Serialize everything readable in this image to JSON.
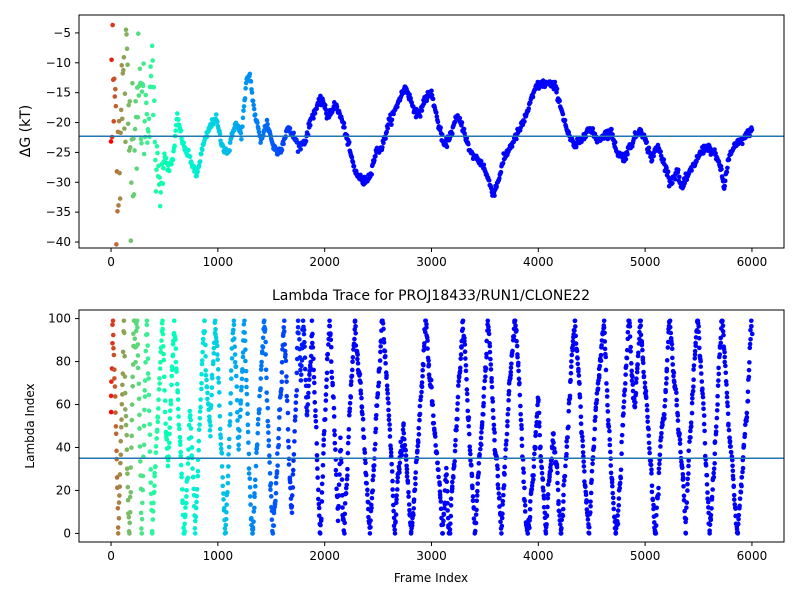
{
  "chart_data": [
    {
      "type": "scatter",
      "title": "",
      "xlabel": "",
      "ylabel": "ΔG (kT)",
      "xlim": [
        -300,
        6300
      ],
      "ylim": [
        -41,
        -2
      ],
      "xticks": [
        0,
        1000,
        2000,
        3000,
        4000,
        5000,
        6000
      ],
      "yticks": [
        -40,
        -35,
        -30,
        -25,
        -20,
        -15,
        -10,
        -5
      ],
      "hline": -22.3,
      "hline_color": "#1f77b4",
      "colormap": "rainbow",
      "color_by": "frame index (red at 0 → purple at 6000)",
      "trace": {
        "x": [
          0,
          30,
          60,
          100,
          140,
          180,
          220,
          260,
          300,
          340,
          380,
          420,
          460,
          500,
          540,
          580,
          620,
          680,
          740,
          800,
          860,
          920,
          980,
          1040,
          1100,
          1160,
          1220,
          1270,
          1300,
          1340,
          1400,
          1460,
          1520,
          1560,
          1600,
          1650,
          1700,
          1760,
          1820,
          1880,
          1940,
          1980,
          2020,
          2060,
          2100,
          2150,
          2200,
          2280,
          2360,
          2420,
          2480,
          2540,
          2600,
          2660,
          2700,
          2760,
          2820,
          2880,
          2940,
          3000,
          3060,
          3120,
          3180,
          3240,
          3300,
          3360,
          3420,
          3480,
          3540,
          3580,
          3620,
          3680,
          3740,
          3800,
          3860,
          3920,
          3980,
          4040,
          4100,
          4160,
          4220,
          4280,
          4340,
          4400,
          4460,
          4520,
          4560,
          4620,
          4680,
          4740,
          4800,
          4860,
          4920,
          4960,
          5020,
          5060,
          5120,
          5180,
          5240,
          5300,
          5340,
          5400,
          5460,
          5520,
          5580,
          5640,
          5700,
          5740,
          5780,
          5840,
          5900,
          5960,
          6000
        ],
        "y": [
          -20,
          -15,
          -25,
          -18,
          -14,
          -22,
          -20,
          -16,
          -17,
          -20,
          -10,
          -27,
          -31,
          -25,
          -28,
          -26,
          -19,
          -24,
          -26,
          -29,
          -24,
          -21,
          -19,
          -24,
          -25,
          -20,
          -22,
          -13,
          -12,
          -18,
          -23,
          -20,
          -24,
          -25,
          -24,
          -21,
          -22,
          -24,
          -23,
          -19,
          -17,
          -16,
          -19,
          -18,
          -17,
          -19,
          -22,
          -28,
          -30,
          -29,
          -25,
          -24,
          -20,
          -18,
          -16,
          -14,
          -17,
          -19,
          -16,
          -15,
          -20,
          -24,
          -22,
          -19,
          -21,
          -25,
          -26,
          -27,
          -30,
          -32,
          -30,
          -26,
          -24,
          -22,
          -20,
          -17,
          -14,
          -13.5,
          -13.5,
          -14,
          -18,
          -22,
          -24,
          -23,
          -21,
          -22,
          -23,
          -22,
          -21.5,
          -25,
          -26,
          -24,
          -22,
          -21,
          -24,
          -26,
          -24,
          -27,
          -30,
          -28,
          -31,
          -29,
          -27,
          -25,
          -24,
          -25,
          -27,
          -31,
          -26,
          -24,
          -23,
          -22,
          -21
        ]
      },
      "series_label": ""
    },
    {
      "type": "scatter",
      "title": "Lambda Trace for PROJ18433/RUN1/CLONE22",
      "xlabel": "Frame Index",
      "ylabel": "Lambda Index",
      "xlim": [
        -300,
        6300
      ],
      "ylim": [
        -4,
        104
      ],
      "xticks": [
        0,
        1000,
        2000,
        3000,
        4000,
        5000,
        6000
      ],
      "yticks": [
        0,
        20,
        40,
        60,
        80,
        100
      ],
      "hline": 35,
      "hline_color": "#1f77b4",
      "colormap": "rainbow",
      "color_by": "frame index (red at 0 → purple at 6000)",
      "lambda_range": [
        0,
        99
      ],
      "frame_range": [
        0,
        6000
      ]
    }
  ]
}
